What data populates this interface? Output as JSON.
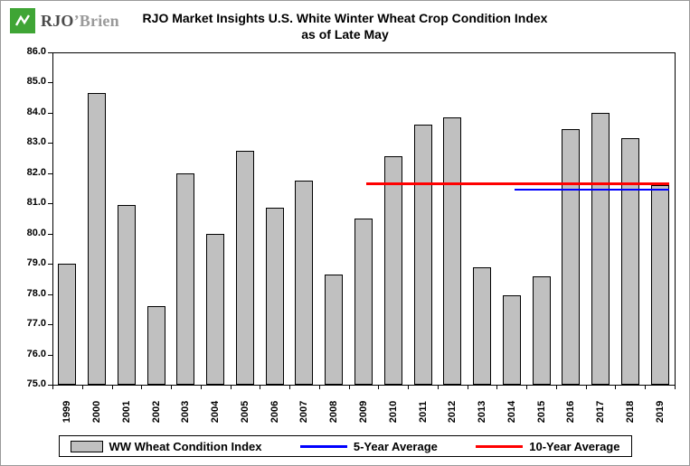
{
  "logo": {
    "name_primary": "RJO",
    "name_secondary": "’Brien",
    "green": "#3FA535"
  },
  "chart_data": {
    "type": "bar",
    "title": "RJO Market Insights U.S. White Winter Wheat Crop Condition Index",
    "subtitle": "as of Late May",
    "categories": [
      "1999",
      "2000",
      "2001",
      "2002",
      "2003",
      "2004",
      "2005",
      "2006",
      "2007",
      "2008",
      "2009",
      "2010",
      "2011",
      "2012",
      "2013",
      "2014",
      "2015",
      "2016",
      "2017",
      "2018",
      "2019"
    ],
    "values": [
      79.0,
      84.65,
      80.95,
      77.6,
      82.0,
      80.0,
      82.75,
      80.85,
      81.75,
      78.65,
      80.5,
      82.55,
      83.6,
      83.85,
      78.9,
      77.95,
      78.6,
      83.45,
      84.0,
      83.15,
      81.6
    ],
    "ylim": [
      75,
      86
    ],
    "yticks": [
      86,
      85,
      84,
      83,
      82,
      81,
      80,
      79,
      78,
      77,
      76,
      75
    ],
    "bar_color": "#C0C0C0",
    "bar_border_color": "#000000",
    "grid": false,
    "legend_position": "bottom",
    "lines": [
      {
        "name": "5-Year Average",
        "value": 81.45,
        "color": "#0000FF",
        "from": "2014",
        "to": "2019",
        "weight": 2
      },
      {
        "name": "10-Year Average",
        "value": 81.65,
        "color": "#FF0000",
        "from": "2009",
        "to": "2019",
        "weight": 3
      }
    ]
  },
  "legend": [
    {
      "label": "WW Wheat Condition Index"
    },
    {
      "label": "5-Year Average"
    },
    {
      "label": "10-Year Average"
    }
  ]
}
